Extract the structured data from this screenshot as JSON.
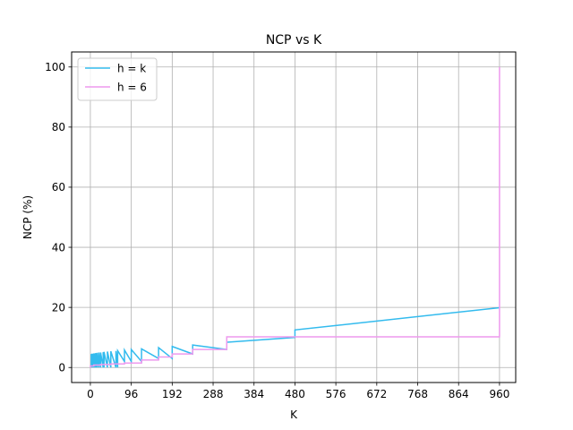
{
  "chart_data": {
    "type": "line",
    "title": "NCP vs K",
    "xlabel": "K",
    "ylabel": "NCP (%)",
    "xlim": [
      -44,
      998
    ],
    "ylim": [
      -5,
      105
    ],
    "xticks": [
      0,
      96,
      192,
      288,
      384,
      480,
      576,
      672,
      768,
      864,
      960
    ],
    "yticks": [
      0,
      20,
      40,
      60,
      80,
      100
    ],
    "grid": true,
    "legend_position": "upper-left",
    "series": [
      {
        "name": "h = k",
        "color": "#33bbee",
        "x": [
          2,
          2,
          4,
          4,
          6,
          6,
          8,
          8,
          10,
          10,
          12,
          12,
          15,
          15,
          16,
          16,
          20,
          20,
          24,
          24,
          30,
          30,
          32,
          32,
          40,
          40,
          48,
          48,
          60,
          60,
          64,
          64,
          80,
          80,
          96,
          96,
          120,
          120,
          160,
          160,
          192,
          192,
          240,
          240,
          320,
          320,
          480,
          480,
          960,
          960
        ],
        "y": [
          0,
          4.5,
          0,
          4.6,
          0,
          4.6,
          0,
          4.7,
          0,
          4.7,
          0,
          4.8,
          0,
          4.8,
          0,
          4.9,
          0,
          5.0,
          0,
          5.0,
          0,
          5.1,
          0,
          5.2,
          0,
          5.3,
          0,
          5.4,
          0,
          5.5,
          0,
          5.6,
          2,
          5.8,
          2,
          6.0,
          2,
          6.2,
          3,
          6.6,
          3,
          7.0,
          4.5,
          7.5,
          6,
          8.4,
          10,
          12.5,
          19.9,
          19.9
        ]
      },
      {
        "name": "h = 6",
        "color": "#ee99ee",
        "x": [
          0,
          0,
          8,
          8,
          24,
          24,
          48,
          48,
          80,
          80,
          120,
          120,
          160,
          160,
          192,
          192,
          240,
          240,
          320,
          320,
          960,
          960
        ],
        "y": [
          0,
          0.5,
          0.5,
          0.8,
          0.8,
          1.0,
          1.0,
          1.2,
          1.2,
          1.5,
          1.5,
          2.5,
          2.5,
          3.5,
          3.5,
          4.5,
          4.5,
          6.0,
          6.0,
          10.2,
          10.2,
          100
        ]
      }
    ]
  }
}
